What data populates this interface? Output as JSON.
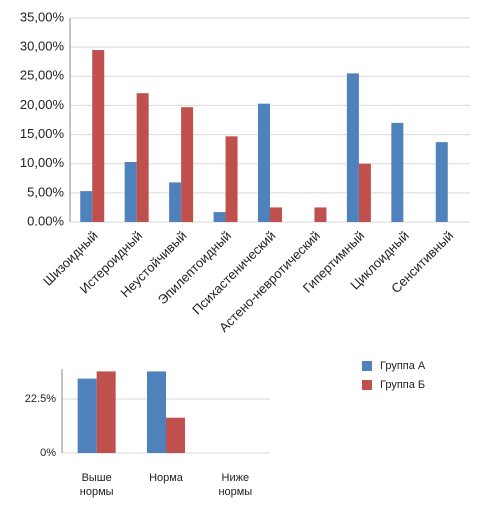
{
  "chart_data": [
    {
      "type": "bar",
      "categories": [
        "Шизоидный",
        "Истероидный",
        "Неустойчивый",
        "Эпилептоидный",
        "Психастенический",
        "Астено-невротический",
        "Гипертимный",
        "Циклоидный",
        "Сенситивный"
      ],
      "series": [
        {
          "color": "#4f81bd",
          "values": [
            5.3,
            10.3,
            6.8,
            1.7,
            20.3,
            0,
            25.5,
            17,
            13.7
          ]
        },
        {
          "color": "#c0504d",
          "values": [
            29.5,
            22.1,
            19.7,
            14.7,
            2.5,
            2.5,
            10,
            0,
            0
          ]
        }
      ],
      "ylim": [
        0,
        35
      ],
      "yticks": [
        {
          "value": 0,
          "label": "0.00%"
        },
        {
          "value": 5,
          "label": "5,00%"
        },
        {
          "value": 10,
          "label": "10,00%"
        },
        {
          "value": 15,
          "label": "15,00%"
        },
        {
          "value": 20,
          "label": "20,00%"
        },
        {
          "value": 25,
          "label": "25,00%"
        },
        {
          "value": 30,
          "label": "30,00%"
        },
        {
          "value": 35,
          "label": "35,00%"
        }
      ],
      "grid": true
    },
    {
      "type": "bar",
      "categories": [
        "Выше нормы",
        "Норма",
        "Ниже нормы"
      ],
      "series": [
        {
          "name": "Группа А",
          "color": "#4f81bd",
          "values": [
            31,
            34,
            0
          ]
        },
        {
          "name": "Группа Б",
          "color": "#c0504d",
          "values": [
            34,
            14.7,
            0
          ]
        }
      ],
      "ylim": [
        0,
        35
      ],
      "yticks": [
        {
          "value": 0,
          "label": "0%"
        },
        {
          "value": 22.5,
          "label": "22.5%"
        }
      ],
      "grid": true,
      "legend": "right"
    }
  ]
}
